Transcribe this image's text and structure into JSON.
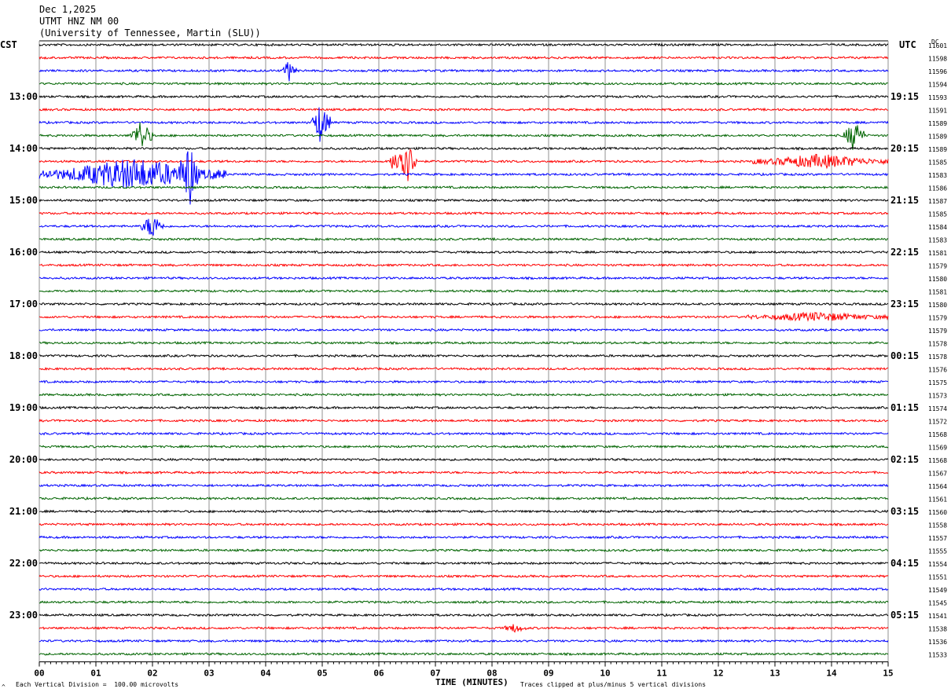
{
  "header": {
    "date": "Dec 1,2025",
    "station": "UTMT HNZ NM 00",
    "network": "(University of Tennessee, Martin (SLU))"
  },
  "labels": {
    "left_timezone": "CST",
    "right_timezone": "UTC",
    "dc_label": "DC",
    "x_title": "TIME (MINUTES)",
    "scale_note": "Each Vertical Division =  100.00 microvolts",
    "clip_note": "Traces clipped at plus/minus 5 vertical divisions",
    "corner_mark": "^"
  },
  "colors": {
    "trace_cycle": [
      "#000000",
      "#ff0000",
      "#0000ff",
      "#006400"
    ],
    "grid": "#909090",
    "background": "#ffffff"
  },
  "chart_data": {
    "type": "line",
    "title": "UTMT HNZ NM 00",
    "xlabel": "TIME (MINUTES)",
    "xlim": [
      0,
      15
    ],
    "x_ticks": [
      "00",
      "01",
      "02",
      "03",
      "04",
      "05",
      "06",
      "07",
      "08",
      "09",
      "10",
      "11",
      "12",
      "13",
      "14",
      "15"
    ],
    "trace_interval_minutes": 15,
    "trace_count": 48,
    "left_hour_labels": [
      "13:00",
      "14:00",
      "15:00",
      "16:00",
      "17:00",
      "18:00",
      "19:00",
      "20:00",
      "21:00",
      "22:00",
      "23:00"
    ],
    "right_hour_labels": [
      "19:15",
      "20:15",
      "21:15",
      "22:15",
      "23:15",
      "00:15",
      "01:15",
      "02:15",
      "03:15",
      "04:15",
      "05:15"
    ],
    "dc_offsets": [
      11601,
      11598,
      11596,
      11594,
      11593,
      11591,
      11589,
      11589,
      11589,
      11585,
      11583,
      11586,
      11587,
      11585,
      11584,
      11583,
      11581,
      11579,
      11580,
      11581,
      11580,
      11579,
      11579,
      11578,
      11578,
      11576,
      11575,
      11573,
      11574,
      11572,
      11568,
      11569,
      11568,
      11567,
      11564,
      11561,
      11560,
      11558,
      11557,
      11555,
      11554,
      11551,
      11549,
      11545,
      11541,
      11538,
      11536,
      11533
    ],
    "events": [
      {
        "trace": 2,
        "start_min": 4.3,
        "end_min": 4.55,
        "amplitude": 0.9
      },
      {
        "trace": 6,
        "start_min": 4.8,
        "end_min": 5.15,
        "amplitude": 1.6
      },
      {
        "trace": 7,
        "start_min": 1.6,
        "end_min": 2.0,
        "amplitude": 1.2
      },
      {
        "trace": 7,
        "start_min": 14.2,
        "end_min": 14.6,
        "amplitude": 1.2
      },
      {
        "trace": 9,
        "start_min": 6.2,
        "end_min": 6.7,
        "amplitude": 2.0
      },
      {
        "trace": 9,
        "start_min": 12.6,
        "end_min": 15.0,
        "amplitude": 0.5
      },
      {
        "trace": 10,
        "start_min": 0.0,
        "end_min": 3.3,
        "amplitude": 1.2
      },
      {
        "trace": 10,
        "start_min": 2.5,
        "end_min": 2.8,
        "amplitude": 2.2
      },
      {
        "trace": 14,
        "start_min": 1.8,
        "end_min": 2.2,
        "amplitude": 1.0
      },
      {
        "trace": 21,
        "start_min": 12.5,
        "end_min": 15.0,
        "amplitude": 0.3
      },
      {
        "trace": 45,
        "start_min": 8.2,
        "end_min": 8.6,
        "amplitude": 0.3
      }
    ]
  }
}
